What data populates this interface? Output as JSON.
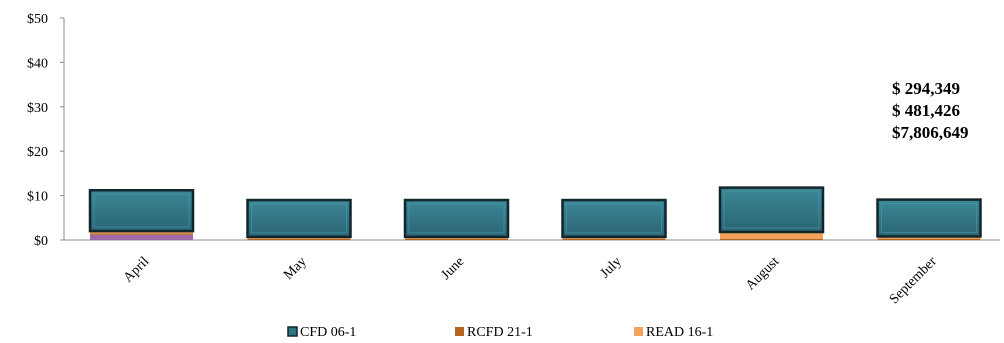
{
  "chart_data": {
    "type": "bar",
    "stacked": true,
    "categories": [
      "April",
      "May",
      "June",
      "July",
      "August",
      "September"
    ],
    "y_ticks": [
      "$0",
      "$10",
      "$20",
      "$30",
      "$40",
      "$50"
    ],
    "ylim": [
      0,
      50
    ],
    "grid": false,
    "legend_position": "bottom",
    "series": [
      {
        "name": "RCFD 21-1",
        "color": "#b5651d",
        "values": [
          0.3,
          0.3,
          0.3,
          0.3,
          0.3,
          0.3
        ]
      },
      {
        "name": "READ 16-1",
        "color": "#f4a259",
        "values": [
          0.5,
          0.4,
          0.4,
          0.4,
          1.5,
          0.5
        ]
      },
      {
        "name": "CFD 06-1",
        "color": "#2e7484",
        "values": [
          9.2,
          8.3,
          8.3,
          8.3,
          10.0,
          8.3
        ]
      }
    ],
    "extra_segment": {
      "category": "April",
      "color": "#a16aa6",
      "value": 1.2
    },
    "annotations": [
      "$  294,349",
      "$  481,426",
      "$7,806,649"
    ]
  }
}
